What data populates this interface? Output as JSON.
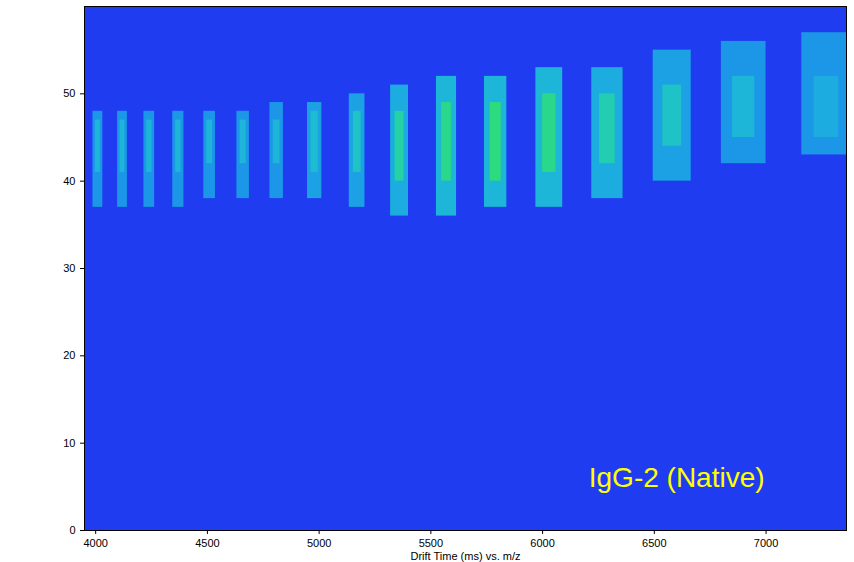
{
  "chart_data": {
    "type": "heatmap",
    "xlabel": "Drift Time (ms) vs. m/z",
    "xlim": [
      3950,
      7360
    ],
    "xticks": [
      4000,
      4500,
      5000,
      5500,
      6000,
      6500,
      7000
    ],
    "ylim": [
      0,
      60
    ],
    "yticks": [
      0,
      10,
      20,
      30,
      40,
      50
    ],
    "zlim": [
      0,
      100
    ],
    "annotations": [
      {
        "text": "IgG-2 (Native)",
        "x": 6600,
        "y": 5,
        "color": "#ffff00"
      }
    ],
    "cells": [
      {
        "x1": 3988,
        "x2": 4032,
        "y1": 37,
        "y2": 48,
        "value": 35
      },
      {
        "x1": 4098,
        "x2": 4142,
        "y1": 37,
        "y2": 48,
        "value": 35
      },
      {
        "x1": 4216,
        "x2": 4264,
        "y1": 37,
        "y2": 48,
        "value": 35
      },
      {
        "x1": 4345,
        "x2": 4395,
        "y1": 37,
        "y2": 48,
        "value": 35
      },
      {
        "x1": 4484,
        "x2": 4536,
        "y1": 38,
        "y2": 48,
        "value": 35
      },
      {
        "x1": 4632,
        "x2": 4688,
        "y1": 38,
        "y2": 48,
        "value": 35
      },
      {
        "x1": 4780,
        "x2": 4840,
        "y1": 38,
        "y2": 49,
        "value": 35
      },
      {
        "x1": 4948,
        "x2": 5012,
        "y1": 38,
        "y2": 49,
        "value": 40
      },
      {
        "x1": 5135,
        "x2": 5205,
        "y1": 37,
        "y2": 50,
        "value": 40
      },
      {
        "x1": 5320,
        "x2": 5400,
        "y1": 36,
        "y2": 51,
        "value": 45
      },
      {
        "x1": 5525,
        "x2": 5615,
        "y1": 36,
        "y2": 52,
        "value": 50
      },
      {
        "x1": 5740,
        "x2": 5840,
        "y1": 37,
        "y2": 52,
        "value": 50
      },
      {
        "x1": 5970,
        "x2": 6090,
        "y1": 37,
        "y2": 53,
        "value": 50
      },
      {
        "x1": 6220,
        "x2": 6360,
        "y1": 38,
        "y2": 53,
        "value": 45
      },
      {
        "x1": 6495,
        "x2": 6665,
        "y1": 40,
        "y2": 55,
        "value": 40
      },
      {
        "x1": 6800,
        "x2": 7000,
        "y1": 42,
        "y2": 56,
        "value": 35
      },
      {
        "x1": 7160,
        "x2": 7380,
        "y1": 43,
        "y2": 57,
        "value": 35
      },
      {
        "x1": 3999,
        "x2": 4021,
        "y1": 41,
        "y2": 47,
        "value": 50
      },
      {
        "x1": 4109,
        "x2": 4131,
        "y1": 41,
        "y2": 47,
        "value": 50
      },
      {
        "x1": 4228,
        "x2": 4252,
        "y1": 41,
        "y2": 47,
        "value": 50
      },
      {
        "x1": 4358,
        "x2": 4382,
        "y1": 41,
        "y2": 47,
        "value": 50
      },
      {
        "x1": 4497,
        "x2": 4523,
        "y1": 42,
        "y2": 47,
        "value": 50
      },
      {
        "x1": 4646,
        "x2": 4674,
        "y1": 42,
        "y2": 47,
        "value": 50
      },
      {
        "x1": 4795,
        "x2": 4825,
        "y1": 42,
        "y2": 47,
        "value": 50
      },
      {
        "x1": 4964,
        "x2": 4996,
        "y1": 41,
        "y2": 48,
        "value": 55
      },
      {
        "x1": 5153,
        "x2": 5188,
        "y1": 41,
        "y2": 48,
        "value": 60
      },
      {
        "x1": 5340,
        "x2": 5380,
        "y1": 40,
        "y2": 48,
        "value": 75
      },
      {
        "x1": 5548,
        "x2": 5592,
        "y1": 40,
        "y2": 49,
        "value": 85
      },
      {
        "x1": 5765,
        "x2": 5815,
        "y1": 40,
        "y2": 49,
        "value": 90
      },
      {
        "x1": 6000,
        "x2": 6060,
        "y1": 41,
        "y2": 50,
        "value": 85
      },
      {
        "x1": 6255,
        "x2": 6325,
        "y1": 42,
        "y2": 50,
        "value": 70
      },
      {
        "x1": 6538,
        "x2": 6622,
        "y1": 44,
        "y2": 51,
        "value": 60
      },
      {
        "x1": 6850,
        "x2": 6950,
        "y1": 45,
        "y2": 52,
        "value": 50
      },
      {
        "x1": 7215,
        "x2": 7325,
        "y1": 45,
        "y2": 52,
        "value": 45
      }
    ]
  }
}
